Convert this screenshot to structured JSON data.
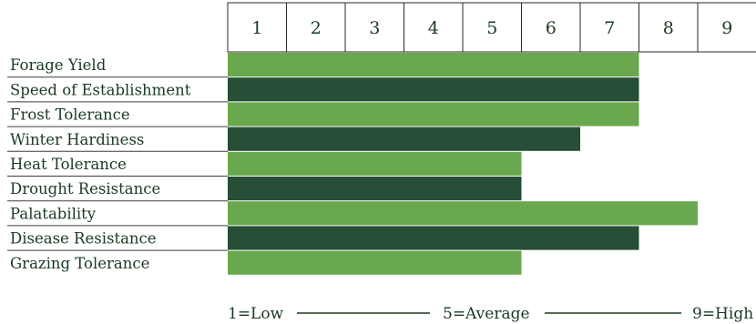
{
  "chart_data": {
    "type": "bar",
    "orientation": "horizontal",
    "categories": [
      "Forage Yield",
      "Speed of Establishment",
      "Frost Tolerance",
      "Winter Hardiness",
      "Heat Tolerance",
      "Drought Resistance",
      "Palatability",
      "Disease Resistance",
      "Grazing Tolerance"
    ],
    "values": [
      7,
      7,
      7,
      6,
      5,
      5,
      8,
      7,
      5
    ],
    "scale_ticks": [
      "1",
      "2",
      "3",
      "4",
      "5",
      "6",
      "7",
      "8",
      "9"
    ],
    "xlim": [
      0,
      9
    ],
    "title": "",
    "xlabel": "",
    "ylabel": "",
    "grid": false,
    "legend": {
      "low": "1=Low",
      "average": "5=Average",
      "high": "9=High"
    },
    "colors": {
      "light_bar": "#6aa84f",
      "dark_bar": "#274e36",
      "header_border": "#2a2a2a",
      "row_line": "#3d3d3d",
      "text": "#1a3a22"
    }
  }
}
